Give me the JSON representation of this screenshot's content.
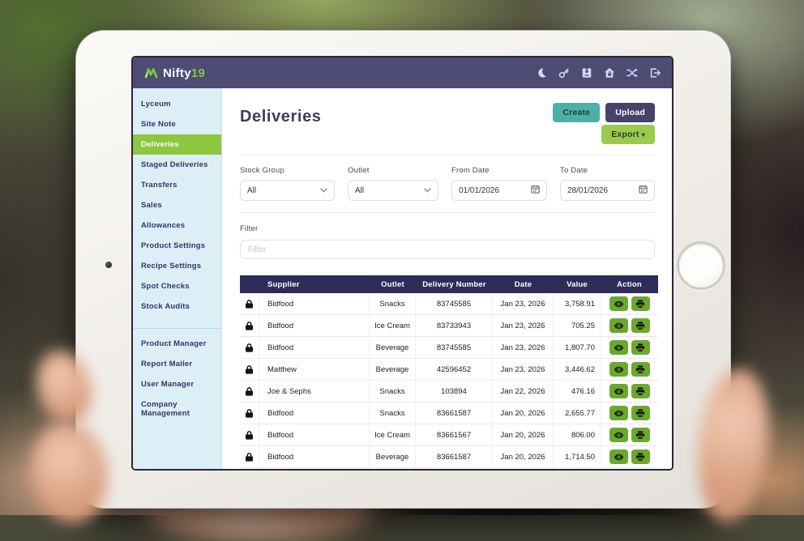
{
  "colors": {
    "navbar": "#4e4b75",
    "accent_green": "#8dc63f",
    "teal": "#4db0a6",
    "purple": "#474269",
    "table_header": "#2f2c5c",
    "action_green": "#6ba92d",
    "sidebar_bg": "#dceef6"
  },
  "navbar": {
    "brand": {
      "name": "Nifty",
      "suffix": "19"
    },
    "icons": [
      "dark-mode-moon",
      "key",
      "id-badge",
      "home-lock",
      "shuffle",
      "sign-out"
    ]
  },
  "sidebar": {
    "active": "Deliveries",
    "primary": [
      "Lyceum",
      "Site Note",
      "Deliveries",
      "Staged Deliveries",
      "Transfers",
      "Sales",
      "Allowances",
      "Product Settings",
      "Recipe Settings",
      "Spot Checks",
      "Stock Audits"
    ],
    "secondary": [
      "Product Manager",
      "Report Mailer",
      "User Manager",
      "Company Management"
    ]
  },
  "page": {
    "title": "Deliveries",
    "buttons": {
      "create": "Create",
      "upload": "Upload",
      "export": "Export"
    }
  },
  "filters": {
    "stock_group": {
      "label": "Stock Group",
      "value": "All"
    },
    "outlet": {
      "label": "Outlet",
      "value": "All"
    },
    "from_date": {
      "label": "From Date",
      "value": "01/01/2026"
    },
    "to_date": {
      "label": "To Date",
      "value": "28/01/2026"
    },
    "filter": {
      "label": "Filter",
      "placeholder": "Filter"
    }
  },
  "table": {
    "headers": [
      "",
      "Supplier",
      "Outlet",
      "Delivery Number",
      "Date",
      "Value",
      "Action"
    ],
    "rows": [
      {
        "supplier": "Bidfood",
        "outlet": "Snacks",
        "delivery_number": "83745585",
        "date": "Jan 23, 2026",
        "value": "3,758.91"
      },
      {
        "supplier": "Bidfood",
        "outlet": "Ice Cream",
        "delivery_number": "83733943",
        "date": "Jan 23, 2026",
        "value": "705.25"
      },
      {
        "supplier": "Bidfood",
        "outlet": "Beverage",
        "delivery_number": "83745585",
        "date": "Jan 23, 2026",
        "value": "1,807.70"
      },
      {
        "supplier": "Matthew",
        "outlet": "Beverage",
        "delivery_number": "42596452",
        "date": "Jan 23, 2026",
        "value": "3,446.62"
      },
      {
        "supplier": "Joe & Sephs",
        "outlet": "Snacks",
        "delivery_number": "103894",
        "date": "Jan 22, 2026",
        "value": "476.16"
      },
      {
        "supplier": "Bidfood",
        "outlet": "Snacks",
        "delivery_number": "83661587",
        "date": "Jan 20, 2026",
        "value": "2,655.77"
      },
      {
        "supplier": "Bidfood",
        "outlet": "Ice Cream",
        "delivery_number": "83661567",
        "date": "Jan 20, 2026",
        "value": "806.00"
      },
      {
        "supplier": "Bidfood",
        "outlet": "Beverage",
        "delivery_number": "83661587",
        "date": "Jan 20, 2026",
        "value": "1,714.50"
      },
      {
        "supplier": "",
        "outlet": "",
        "delivery_number": "",
        "date": "",
        "value": ""
      }
    ]
  }
}
